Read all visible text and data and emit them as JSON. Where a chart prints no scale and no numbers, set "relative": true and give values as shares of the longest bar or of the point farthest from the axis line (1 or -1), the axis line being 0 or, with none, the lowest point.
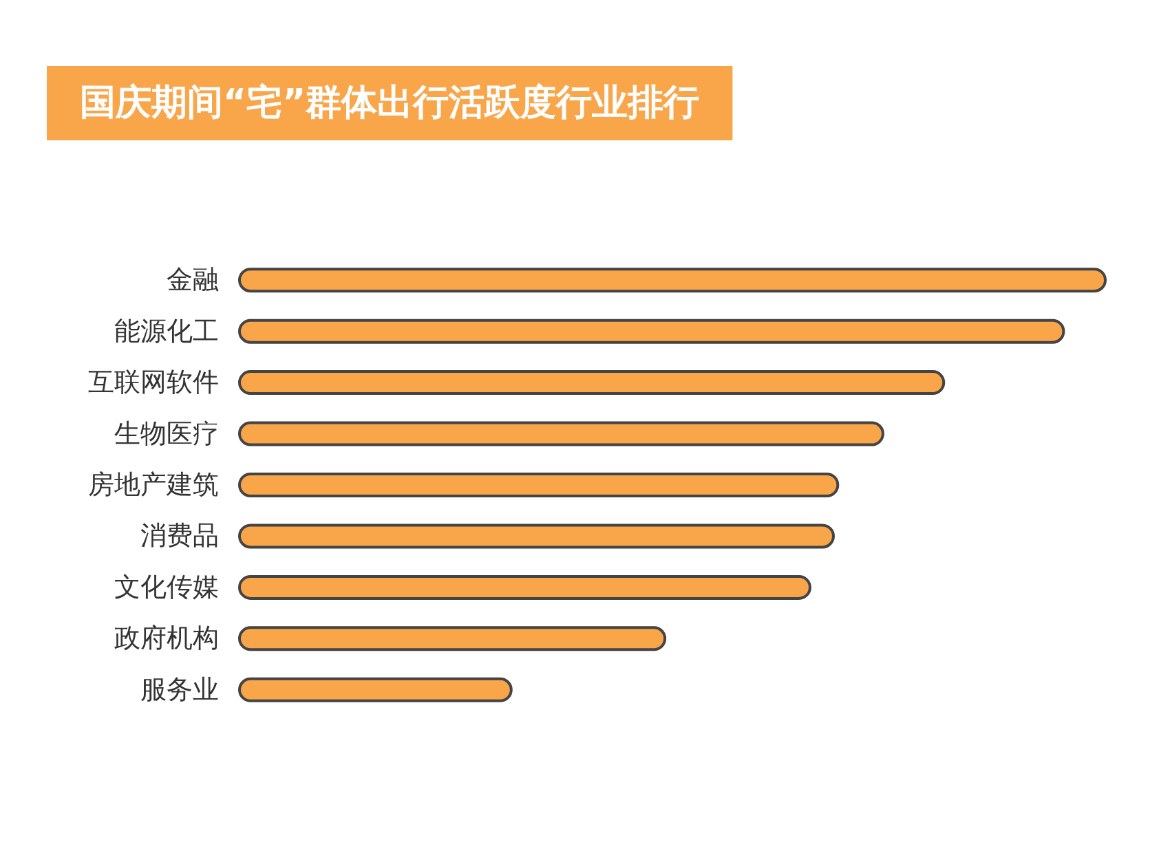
{
  "chart_data": {
    "type": "bar",
    "orientation": "horizontal",
    "relative": true,
    "title": "国庆期间“宅”群体出行活跃度行业排行",
    "color": "#f9a54a",
    "categories": [
      "金融",
      "能源化工",
      "互联网软件",
      "生物医疗",
      "房地产建筑",
      "消费品",
      "文化传媒",
      "政府机构",
      "服务业"
    ],
    "values": [
      1,
      0.952,
      0.814,
      0.744,
      0.692,
      0.687,
      0.66,
      0.493,
      0.316
    ]
  }
}
